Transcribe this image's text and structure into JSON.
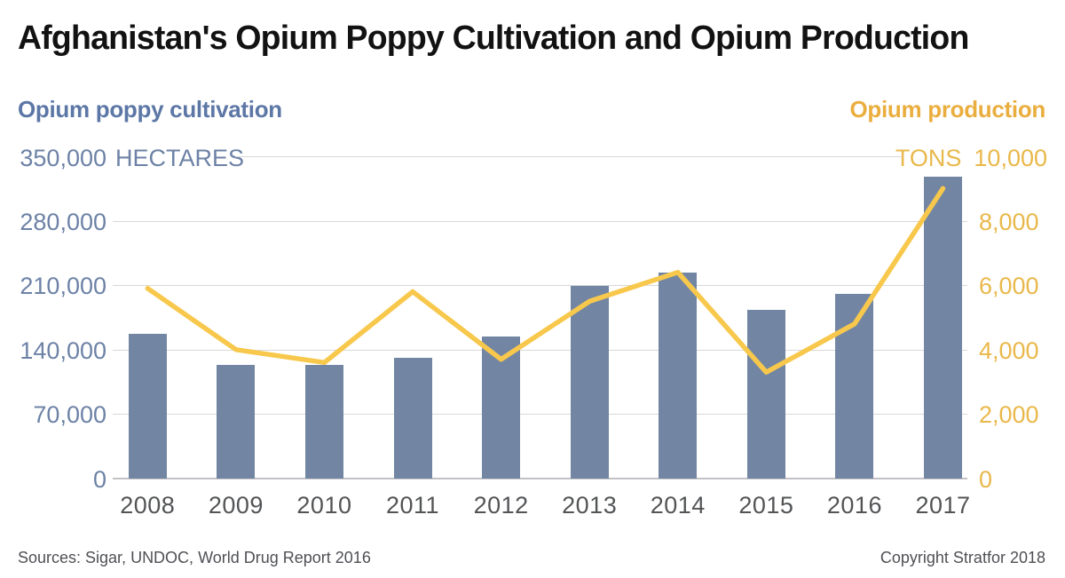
{
  "title": "Afghanistan's Opium Poppy Cultivation and Opium Production",
  "legend": {
    "left": {
      "label": "Opium poppy cultivation"
    },
    "right": {
      "label": "Opium production"
    }
  },
  "left_axis": {
    "max_label": "350,000",
    "unit": "HECTARES",
    "ticks": [
      "280,000",
      "210,000",
      "140,000",
      "70,000",
      "0"
    ]
  },
  "right_axis": {
    "max_label": "10,000",
    "unit": "TONS",
    "ticks": [
      "8,000",
      "6,000",
      "4,000",
      "2,000",
      "0"
    ]
  },
  "footer": {
    "sources": "Sources: Sigar, UNDOC, World Drug Report 2016",
    "copyright": "Copyright Stratfor 2018"
  },
  "colors": {
    "bar": "#7286a3",
    "line": "#f8c84c",
    "grid": "#d8d8d8",
    "baseline": "#c2c2c6",
    "blue_text": "#5c77a6",
    "blue_axis_text": "#6d82a6",
    "gold_text": "#eaae3e",
    "gold_axis_text": "#e9b84a",
    "title_text": "#121212",
    "year_text": "#535456",
    "footer_text": "#4f5055"
  },
  "chart_data": {
    "type": "bar+line",
    "categories": [
      "2008",
      "2009",
      "2010",
      "2011",
      "2012",
      "2013",
      "2014",
      "2015",
      "2016",
      "2017"
    ],
    "series": [
      {
        "name": "Opium poppy cultivation",
        "type": "bar",
        "axis": "left",
        "unit": "hectares",
        "values": [
          157000,
          123000,
          123000,
          131000,
          154000,
          209000,
          224000,
          183000,
          201000,
          328000
        ]
      },
      {
        "name": "Opium production",
        "type": "line",
        "axis": "right",
        "unit": "tons",
        "values": [
          5900,
          4000,
          3600,
          5800,
          3700,
          5500,
          6400,
          3300,
          4800,
          9000
        ]
      }
    ],
    "left_ylim": [
      0,
      350000
    ],
    "right_ylim": [
      0,
      10000
    ],
    "grid": true,
    "legend_position": "top"
  }
}
